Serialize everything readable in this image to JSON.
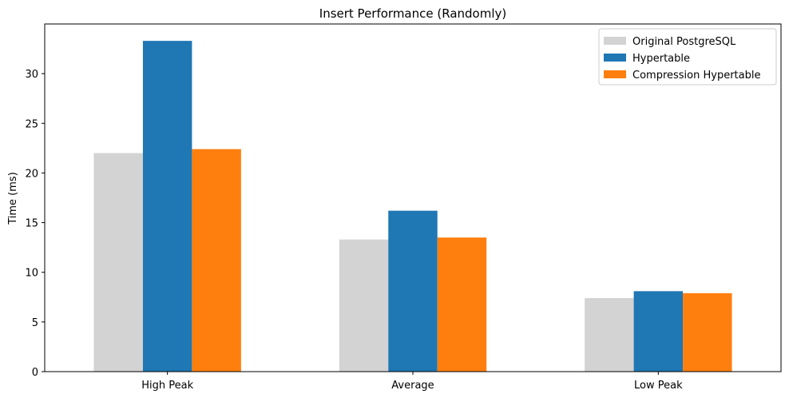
{
  "chart_data": {
    "type": "bar",
    "title": "Insert Performance (Randomly)",
    "xlabel": "",
    "ylabel": "Time (ms)",
    "categories": [
      "High Peak",
      "Average",
      "Low Peak"
    ],
    "series": [
      {
        "name": "Original PostgreSQL",
        "values": [
          22.0,
          13.3,
          7.4
        ],
        "color": "#d3d3d3"
      },
      {
        "name": "Hypertable",
        "values": [
          33.3,
          16.2,
          8.1
        ],
        "color": "#1f77b4"
      },
      {
        "name": "Compression Hypertable",
        "values": [
          22.4,
          13.5,
          7.9
        ],
        "color": "#ff7f0e"
      }
    ],
    "ylim": [
      0,
      35.0
    ],
    "yticks": [
      0,
      5,
      10,
      15,
      20,
      25,
      30
    ],
    "grid": false,
    "legend_position": "top-right"
  }
}
